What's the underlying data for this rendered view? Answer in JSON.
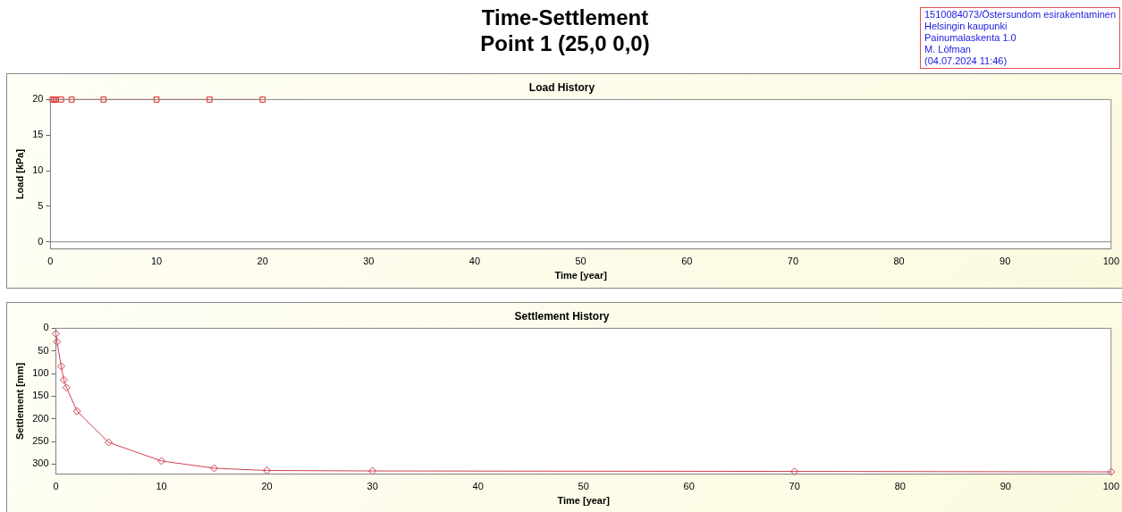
{
  "chart_data": [
    {
      "type": "line",
      "title": "Load History",
      "xlabel": "Time [year]",
      "ylabel": "Load [kPa]",
      "annotations": [
        "Time-Settlement",
        "Point 1 (25,0 0,0)",
        "1510084073/Östersundom esirakentaminen",
        "Helsingin kaupunki",
        "Painumalaskenta 1.0",
        "M. Löfman",
        "(04.07.2024 11:46)"
      ],
      "series": [
        {
          "color": "#e02020",
          "x": [
            0.2,
            0.35,
            0.5,
            1,
            2,
            5,
            10,
            15,
            20
          ],
          "values": [
            20,
            20,
            20,
            20,
            20,
            20,
            20,
            20,
            20
          ]
        }
      ],
      "xlim": [
        0,
        100
      ],
      "xticks": [
        0,
        10,
        20,
        30,
        40,
        50,
        60,
        70,
        80,
        90,
        100
      ],
      "ref_lines": [
        {
          "axis": "y",
          "value": 0,
          "color": "#888888"
        }
      ],
      "ylim": [
        -1,
        20
      ],
      "yticks": [
        0,
        5,
        10,
        15,
        20
      ],
      "grid": false,
      "legend": false,
      "marker": "square"
    },
    {
      "type": "line",
      "title": "Settlement History",
      "xlabel": "Time [year]",
      "ylabel": "Settlement [mm]",
      "series": [
        {
          "color": "#d04050",
          "x": [
            0,
            0.1,
            0.5,
            0.75,
            1,
            2,
            5,
            10,
            15,
            20,
            30,
            70,
            100
          ],
          "values": [
            12,
            30,
            84,
            114,
            131,
            183,
            252,
            293,
            309,
            314,
            315,
            316,
            317
          ]
        }
      ],
      "xlim": [
        0,
        100
      ],
      "xticks": [
        0,
        10,
        20,
        30,
        40,
        50,
        60,
        70,
        80,
        90,
        100
      ],
      "ylim": [
        322,
        0
      ],
      "yticks": [
        0,
        50,
        100,
        150,
        200,
        250,
        300
      ],
      "grid": false,
      "legend": false,
      "marker": "diamond"
    }
  ]
}
